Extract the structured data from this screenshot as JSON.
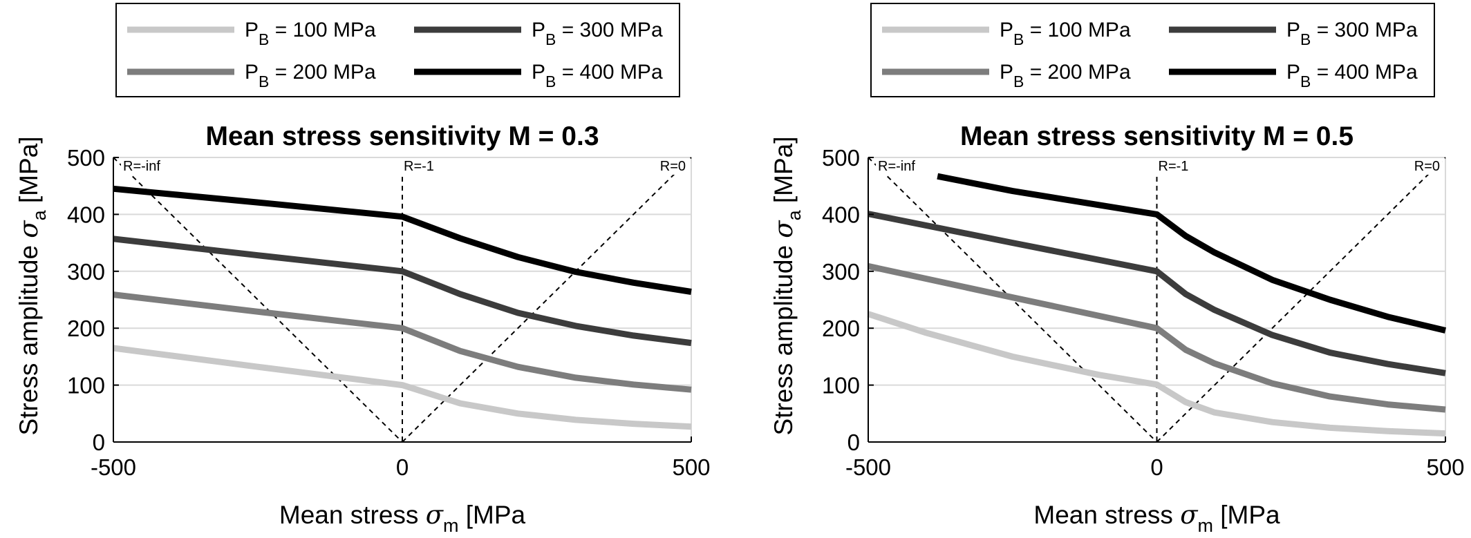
{
  "chart_data": [
    {
      "type": "line",
      "title": "Mean stress sensitivity M = 0.3",
      "xlabel": {
        "main": "Mean stress ",
        "symbol": "σ",
        "sub": "m",
        "unit": " [MPa"
      },
      "ylabel": {
        "main": "Stress amplitude ",
        "symbol": "σ",
        "sub": "a",
        "unit": " [MPa]"
      },
      "xlim": [
        -500,
        500
      ],
      "ylim": [
        0,
        500
      ],
      "xticks": [
        "-500",
        "0",
        "500"
      ],
      "yticks": [
        "0",
        "100",
        "200",
        "300",
        "400",
        "500"
      ],
      "grid": "horizontal",
      "legend_position": "above",
      "reference_lines": [
        {
          "label": "R=-inf",
          "points": [
            [
              -500,
              500
            ],
            [
              0,
              0
            ]
          ]
        },
        {
          "label": "R=-1",
          "points": [
            [
              0,
              0
            ],
            [
              0,
              500
            ]
          ]
        },
        {
          "label": "R=0",
          "points": [
            [
              0,
              0
            ],
            [
              500,
              500
            ]
          ]
        }
      ],
      "series": [
        {
          "legend": {
            "p": "P",
            "sub": "B",
            "rest": " = 100 MPa"
          },
          "color": "#c8c8c8",
          "x": [
            -500,
            -250,
            0,
            100,
            200,
            300,
            400,
            500
          ],
          "y": [
            165,
            132,
            100,
            68,
            50,
            39,
            32,
            27
          ]
        },
        {
          "legend": {
            "p": "P",
            "sub": "B",
            "rest": " = 200 MPa"
          },
          "color": "#7d7d7d",
          "x": [
            -500,
            -250,
            0,
            100,
            200,
            300,
            400,
            500
          ],
          "y": [
            259,
            229,
            200,
            160,
            132,
            113,
            101,
            92
          ]
        },
        {
          "legend": {
            "p": "P",
            "sub": "B",
            "rest": " = 300 MPa"
          },
          "color": "#3c3c3c",
          "x": [
            -500,
            -250,
            0,
            100,
            200,
            300,
            400,
            500
          ],
          "y": [
            357,
            328,
            300,
            260,
            227,
            204,
            187,
            174
          ]
        },
        {
          "legend": {
            "p": "P",
            "sub": "B",
            "rest": " = 400 MPa"
          },
          "color": "#000000",
          "x": [
            -500,
            -250,
            0,
            100,
            200,
            300,
            400,
            500
          ],
          "y": [
            445,
            421,
            396,
            358,
            325,
            299,
            280,
            264
          ]
        }
      ]
    },
    {
      "type": "line",
      "title": "Mean stress sensitivity M = 0.5",
      "xlabel": {
        "main": "Mean stress ",
        "symbol": "σ",
        "sub": "m",
        "unit": " [MPa"
      },
      "ylabel": {
        "main": "Stress amplitude ",
        "symbol": "σ",
        "sub": "a",
        "unit": " [MPa]"
      },
      "xlim": [
        -500,
        500
      ],
      "ylim": [
        0,
        500
      ],
      "xticks": [
        "-500",
        "0",
        "500"
      ],
      "yticks": [
        "0",
        "100",
        "200",
        "300",
        "400",
        "500"
      ],
      "grid": "horizontal",
      "legend_position": "above",
      "reference_lines": [
        {
          "label": "R=-inf",
          "points": [
            [
              -500,
              500
            ],
            [
              0,
              0
            ]
          ]
        },
        {
          "label": "R=-1",
          "points": [
            [
              0,
              0
            ],
            [
              0,
              500
            ]
          ]
        },
        {
          "label": "R=0",
          "points": [
            [
              0,
              0
            ],
            [
              500,
              500
            ]
          ]
        }
      ],
      "series": [
        {
          "legend": {
            "p": "P",
            "sub": "B",
            "rest": " = 100 MPa"
          },
          "color": "#c8c8c8",
          "x": [
            -500,
            -400,
            -250,
            -100,
            0,
            50,
            100,
            200,
            300,
            400,
            500
          ],
          "y": [
            225,
            192,
            150,
            118,
            101,
            70,
            52,
            35,
            25,
            19,
            15
          ]
        },
        {
          "legend": {
            "p": "P",
            "sub": "B",
            "rest": " = 200 MPa"
          },
          "color": "#7d7d7d",
          "x": [
            -500,
            -250,
            0,
            50,
            100,
            200,
            300,
            400,
            500
          ],
          "y": [
            309,
            254,
            200,
            162,
            138,
            103,
            80,
            66,
            57
          ]
        },
        {
          "legend": {
            "p": "P",
            "sub": "B",
            "rest": " = 300 MPa"
          },
          "color": "#3c3c3c",
          "x": [
            -500,
            -250,
            0,
            50,
            100,
            200,
            300,
            400,
            500
          ],
          "y": [
            401,
            350,
            300,
            260,
            232,
            188,
            157,
            137,
            121
          ]
        },
        {
          "legend": {
            "p": "P",
            "sub": "B",
            "rest": " = 400 MPa"
          },
          "color": "#000000",
          "x": [
            -380,
            -250,
            0,
            50,
            100,
            200,
            300,
            400,
            500
          ],
          "y": [
            467,
            441,
            400,
            362,
            333,
            285,
            250,
            220,
            196
          ]
        }
      ]
    }
  ]
}
